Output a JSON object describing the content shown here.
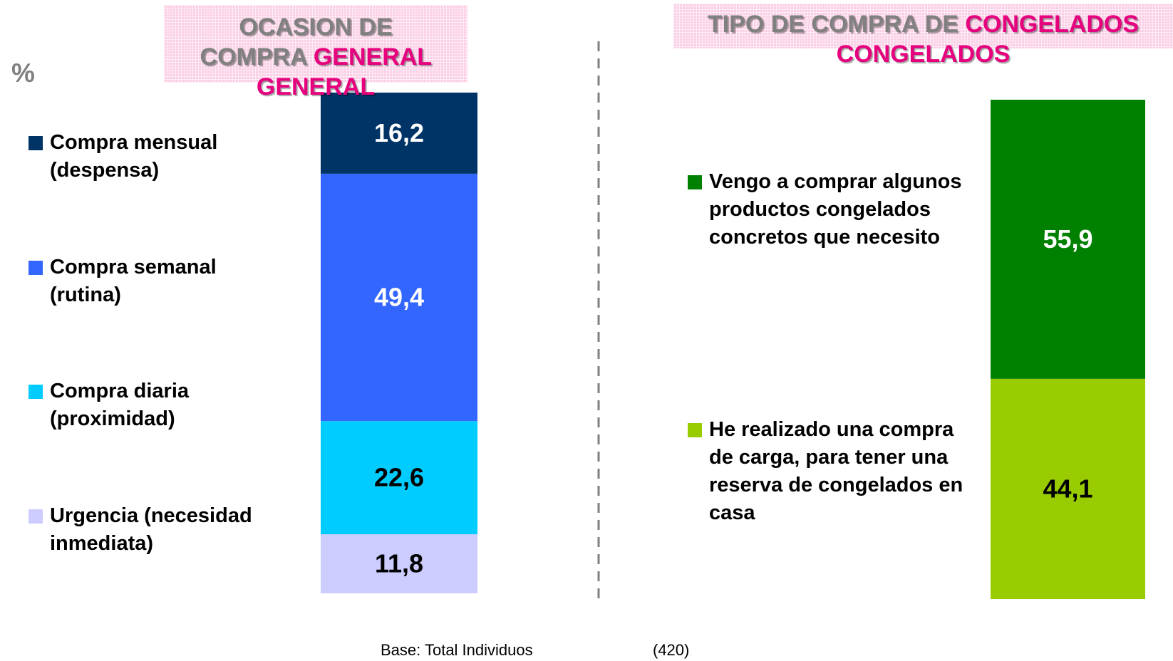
{
  "unit": "%",
  "footer": {
    "base": "Base: Total Individuos",
    "count": "(420)"
  },
  "chart_data": [
    {
      "type": "stacked_bar",
      "title": [
        "OCASION DE",
        "COMPRA",
        "GENERAL"
      ],
      "title_color": "#808080",
      "title_highlight_color": "#e6007e",
      "ylim": [
        0,
        100
      ],
      "series": [
        {
          "name": "Compra mensual (despensa)",
          "color": "#003366",
          "label_color": "#ffffff",
          "values": [
            16.2
          ],
          "value_labels": [
            "16,2"
          ]
        },
        {
          "name": "Compra semanal (rutina)",
          "color": "#3366ff",
          "label_color": "#ffffff",
          "values": [
            49.4
          ],
          "value_labels": [
            "49,4"
          ]
        },
        {
          "name": "Compra diaria (proximidad)",
          "color": "#00ccff",
          "label_color": "#000000",
          "values": [
            22.6
          ],
          "value_labels": [
            "22,6"
          ]
        },
        {
          "name": "Urgencia (necesidad inmediata)",
          "color": "#ccccff",
          "label_color": "#000000",
          "values": [
            11.8
          ],
          "value_labels": [
            "11,8"
          ]
        }
      ]
    },
    {
      "type": "stacked_bar",
      "title": [
        "TIPO DE COMPRA DE",
        "CONGELADOS"
      ],
      "title_color": "#808080",
      "title_highlight_color": "#e6007e",
      "ylim": [
        0,
        100
      ],
      "series": [
        {
          "name": "Vengo a comprar algunos productos congelados concretos que necesito",
          "color": "#008000",
          "label_color": "#ffffff",
          "values": [
            55.9
          ],
          "value_labels": [
            "55,9"
          ]
        },
        {
          "name": "He realizado una compra de carga, para tener una reserva de congelados en casa",
          "color": "#99cc00",
          "label_color": "#000000",
          "values": [
            44.1
          ],
          "value_labels": [
            "44,1"
          ]
        }
      ]
    }
  ]
}
